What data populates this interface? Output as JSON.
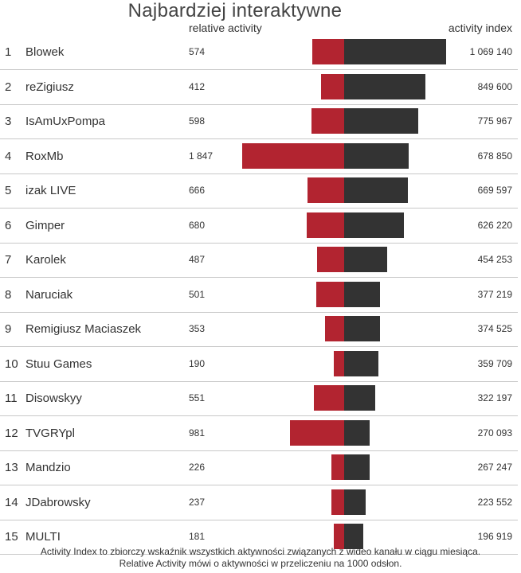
{
  "chart_data": {
    "type": "bar",
    "title": "Najbardziej interaktywne",
    "columns": {
      "relative_activity": "relative activity",
      "activity_index": "activity index"
    },
    "ranks": [
      "1",
      "2",
      "3",
      "4",
      "5",
      "6",
      "7",
      "8",
      "9",
      "10",
      "11",
      "12",
      "13",
      "14",
      "15"
    ],
    "categories": [
      "Blowek",
      "reZigiusz",
      "IsAmUxPompa",
      "RoxMb",
      "izak LIVE",
      "Gimper",
      "Karolek",
      "Naruciak",
      "Remigiusz Maciaszek",
      "Stuu Games",
      "Disowskyy",
      "TVGRYpl",
      "Mandzio",
      "JDabrowsky",
      "MULTI"
    ],
    "series": [
      {
        "key": "relative_activity",
        "color": "#b22430",
        "values": [
          574,
          412,
          598,
          1847,
          666,
          680,
          487,
          501,
          353,
          190,
          551,
          981,
          226,
          237,
          181
        ],
        "labels": [
          "574",
          "412",
          "598",
          "1 847",
          "666",
          "680",
          "487",
          "501",
          "353",
          "190",
          "551",
          "981",
          "226",
          "237",
          "181"
        ]
      },
      {
        "key": "activity_index",
        "color": "#333333",
        "values": [
          1069140,
          849600,
          775967,
          678850,
          669597,
          626220,
          454253,
          377219,
          374525,
          359709,
          322197,
          270093,
          267247,
          223552,
          196919
        ],
        "labels": [
          "1 069 140",
          "849 600",
          "775 967",
          "678 850",
          "669 597",
          "626 220",
          "454 253",
          "377 219",
          "374 525",
          "359 709",
          "322 197",
          "270 093",
          "267 247",
          "223 552",
          "196 919"
        ]
      }
    ],
    "footnote": [
      "Activity Index to zbiorczy wskaźnik wszystkich aktywności związanych z wideo kanału w ciągu miesiąca.",
      "Relative Activity mówi o aktywności w przeliczeniu na 1000 odsłon."
    ]
  }
}
